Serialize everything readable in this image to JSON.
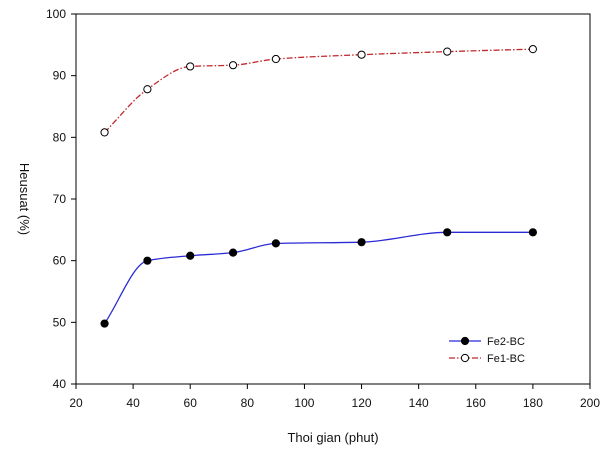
{
  "chart_data": {
    "type": "line",
    "title": "",
    "xlabel": "Thoi gian (phut)",
    "ylabel": "Heusuat (%)",
    "xlim": [
      20,
      200
    ],
    "ylim": [
      40,
      100
    ],
    "xticks": [
      20,
      40,
      60,
      80,
      100,
      120,
      140,
      160,
      180,
      200
    ],
    "yticks": [
      40,
      50,
      60,
      70,
      80,
      90,
      100
    ],
    "grid": false,
    "legend_position": "bottom-right",
    "series": [
      {
        "name": "Fe2-BC",
        "color": "#2b2bd6",
        "line_style": "solid",
        "marker": "filled-circle",
        "x": [
          30,
          45,
          60,
          75,
          90,
          120,
          150,
          180
        ],
        "y": [
          49.8,
          60.0,
          60.8,
          61.3,
          62.8,
          63.0,
          64.6,
          64.6
        ]
      },
      {
        "name": "Fe1-BC",
        "color": "#c0282d",
        "line_style": "dash-dot",
        "marker": "open-circle",
        "x": [
          30,
          45,
          60,
          75,
          90,
          120,
          150,
          180
        ],
        "y": [
          80.8,
          87.8,
          91.5,
          91.7,
          92.7,
          93.4,
          93.9,
          94.3
        ]
      }
    ]
  }
}
